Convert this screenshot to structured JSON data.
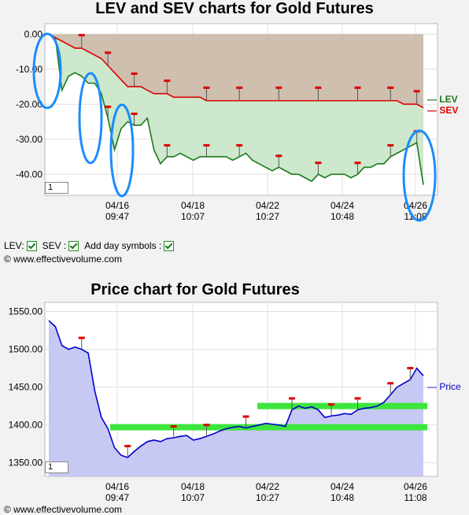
{
  "chart_data": [
    {
      "type": "line",
      "title": "LEV and SEV charts for Gold Futures",
      "y_ticks": [
        "0.00",
        "-10.00",
        "-20.00",
        "-30.00",
        "-40.00"
      ],
      "ylim": [
        -46,
        3
      ],
      "x_ticks": [
        {
          "date": "04/16",
          "time": "09:47"
        },
        {
          "date": "04/18",
          "time": "10:07"
        },
        {
          "date": "04/22",
          "time": "10:27"
        },
        {
          "date": "04/24",
          "time": "10:48"
        },
        {
          "date": "04/26",
          "time": "11:08"
        }
      ],
      "series": [
        {
          "name": "LEV",
          "color": "#1a7a1a",
          "values": [
            0,
            -1,
            -16,
            -12,
            -11,
            -12,
            -14,
            -14,
            -17,
            -24,
            -33,
            -27,
            -25,
            -26,
            -26,
            -24,
            -33,
            -37,
            -35,
            -35,
            -34,
            -35,
            -36,
            -35,
            -35,
            -35,
            -35,
            -35,
            -36,
            -35,
            -34,
            -36,
            -37,
            -38,
            -39,
            -38,
            -39,
            -40,
            -40,
            -41,
            -42,
            -40,
            -41,
            -40,
            -40,
            -40,
            -41,
            -40,
            -38,
            -38,
            -37,
            -37,
            -35,
            -34,
            -33,
            -32,
            -31,
            -43
          ]
        },
        {
          "name": "SEV",
          "color": "#e00000",
          "values": [
            0,
            -1,
            -2,
            -3,
            -4,
            -4,
            -5,
            -6,
            -7,
            -9,
            -11,
            -13,
            -15,
            -15,
            -15,
            -16,
            -17,
            -17,
            -17,
            -18,
            -18,
            -18,
            -18,
            -18,
            -19,
            -19,
            -19,
            -19,
            -19,
            -19,
            -19,
            -19,
            -19,
            -19,
            -19,
            -19,
            -19,
            -19,
            -19,
            -19,
            -19,
            -19,
            -19,
            -19,
            -19,
            -19,
            -19,
            -19,
            -19,
            -19,
            -19,
            -19,
            -19,
            -19,
            -20,
            -20,
            -20,
            -21
          ]
        }
      ],
      "input_value": "1"
    },
    {
      "type": "line",
      "title": "Price chart for Gold Futures",
      "y_ticks": [
        "1550.00",
        "1500.00",
        "1450.00",
        "1400.00",
        "1350.00"
      ],
      "ylim": [
        1332,
        1562
      ],
      "x_ticks": [
        {
          "date": "04/16",
          "time": "09:47"
        },
        {
          "date": "04/18",
          "time": "10:07"
        },
        {
          "date": "04/22",
          "time": "10:27"
        },
        {
          "date": "04/24",
          "time": "10:48"
        },
        {
          "date": "04/26",
          "time": "11:08"
        }
      ],
      "series": [
        {
          "name": "Price",
          "color": "#0000cc",
          "values": [
            1538,
            1530,
            1505,
            1500,
            1503,
            1500,
            1495,
            1445,
            1410,
            1395,
            1370,
            1360,
            1357,
            1365,
            1372,
            1378,
            1380,
            1378,
            1382,
            1383,
            1385,
            1386,
            1380,
            1382,
            1385,
            1388,
            1392,
            1395,
            1397,
            1398,
            1396,
            1398,
            1400,
            1402,
            1401,
            1400,
            1398,
            1420,
            1425,
            1422,
            1424,
            1420,
            1410,
            1412,
            1413,
            1415,
            1414,
            1420,
            1422,
            1423,
            1425,
            1430,
            1440,
            1450,
            1455,
            1460,
            1475,
            1465
          ]
        }
      ],
      "bands": [
        1397,
        1425
      ],
      "input_value": "1"
    }
  ],
  "legend": {
    "lev_label": "LEV:",
    "sev_label": "SEV :",
    "day_label": "Add day symbols :"
  },
  "copyright": "© www.effectivevolume.com",
  "copyright2": "© www.effectivevolume.com"
}
